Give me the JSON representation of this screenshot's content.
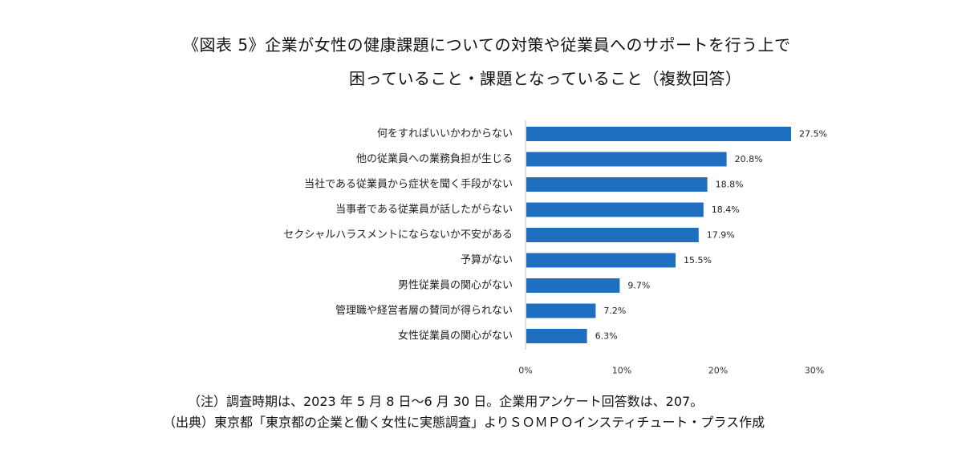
{
  "title": {
    "line1": "《図表 5》企業が女性の健康課題についての対策や従業員へのサポートを行う上で",
    "line2": "困っていること・課題となっていること（複数回答）"
  },
  "notes": {
    "note": "（注）調査時期は、2023 年 5 月 8 日～6 月 30 日。企業用アンケート回答数は、207。",
    "source": "（出典）東京都「東京都の企業と働く女性に実態調査」よりＳＯＭＰＯインスティチュート・プラス作成"
  },
  "colors": {
    "bar": "#1f6fc0",
    "axis": "#bfbfbf"
  },
  "chart_data": {
    "type": "bar",
    "orientation": "horizontal",
    "categories": [
      "何をすればいいかわからない",
      "他の従業員への業務負担が生じる",
      "当社である従業員から症状を聞く手段がない",
      "当事者である従業員が話したがらない",
      "セクシャルハラスメントにならないか不安がある",
      "予算がない",
      "男性従業員の関心がない",
      "管理職や経営者層の賛同が得られない",
      "女性従業員の関心がない"
    ],
    "values": [
      27.5,
      20.8,
      18.8,
      18.4,
      17.9,
      15.5,
      9.7,
      7.2,
      6.3
    ],
    "value_labels": [
      "27.5%",
      "20.8%",
      "18.8%",
      "18.4%",
      "17.9%",
      "15.5%",
      "9.7%",
      "7.2%",
      "6.3%"
    ],
    "xlim": [
      0,
      30
    ],
    "xticks": [
      0,
      10,
      20,
      30
    ],
    "xtick_labels": [
      "0%",
      "10%",
      "20%",
      "30%"
    ],
    "grid": false,
    "legend": "none"
  }
}
